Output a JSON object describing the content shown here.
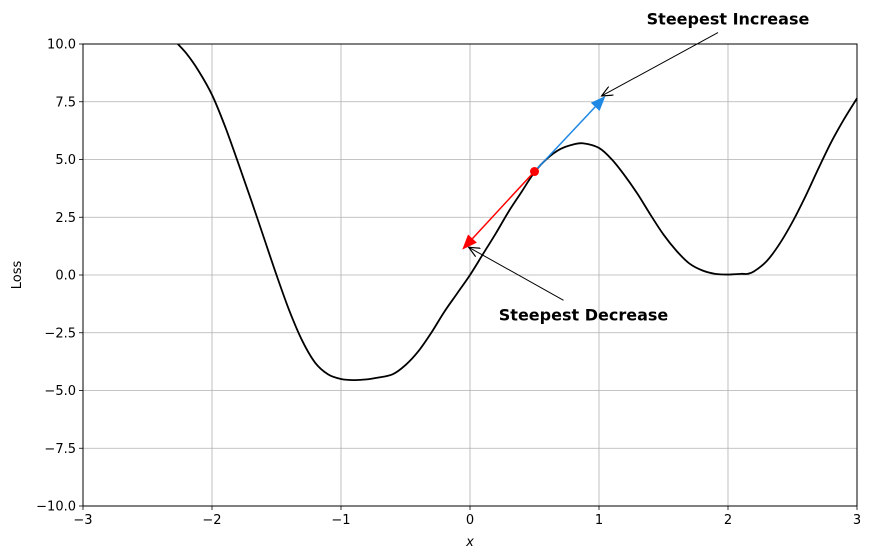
{
  "chart_data": {
    "type": "line",
    "xlabel": "x",
    "ylabel": "Loss",
    "xlim": [
      -3,
      3
    ],
    "ylim": [
      -10,
      10
    ],
    "grid": true,
    "x_ticks": [
      -3,
      -2,
      -1,
      0,
      1,
      2,
      3
    ],
    "x_tick_labels": [
      "−3",
      "−2",
      "−1",
      "0",
      "1",
      "2",
      "3"
    ],
    "y_ticks": [
      -10,
      -7.5,
      -5,
      -2.5,
      0,
      2.5,
      5,
      7.5,
      10
    ],
    "y_tick_labels": [
      "−10.0",
      "−7.5",
      "−5.0",
      "−2.5",
      "0.0",
      "2.5",
      "5.0",
      "7.5",
      "10.0"
    ],
    "series": [
      {
        "color": "#000000",
        "x": [
          -2.3,
          -2.2,
          -2.1,
          -2.0,
          -1.9,
          -1.8,
          -1.7,
          -1.6,
          -1.5,
          -1.4,
          -1.3,
          -1.2,
          -1.1,
          -1.0,
          -0.9,
          -0.8,
          -0.72,
          -0.6,
          -0.5,
          -0.4,
          -0.3,
          -0.2,
          -0.1,
          0.0,
          0.1,
          0.2,
          0.3,
          0.4,
          0.5,
          0.6,
          0.7,
          0.8,
          0.88,
          1.0,
          1.1,
          1.2,
          1.3,
          1.4,
          1.5,
          1.6,
          1.7,
          1.8,
          1.9,
          2.0,
          2.1,
          2.15,
          2.2,
          2.3,
          2.4,
          2.5,
          2.6,
          2.7,
          2.8,
          2.9,
          3.0
        ],
        "y": [
          10.2,
          9.6,
          8.8,
          7.8,
          6.45,
          4.9,
          3.3,
          1.65,
          0.0,
          -1.55,
          -2.85,
          -3.8,
          -4.3,
          -4.5,
          -4.55,
          -4.52,
          -4.45,
          -4.3,
          -3.9,
          -3.3,
          -2.5,
          -1.6,
          -0.8,
          0.0,
          0.9,
          1.8,
          2.75,
          3.6,
          4.45,
          5.05,
          5.45,
          5.65,
          5.7,
          5.5,
          5.0,
          4.3,
          3.5,
          2.6,
          1.75,
          1.05,
          0.5,
          0.2,
          0.05,
          0.02,
          0.05,
          0.05,
          0.15,
          0.6,
          1.35,
          2.3,
          3.4,
          4.6,
          5.75,
          6.75,
          7.65
        ]
      }
    ],
    "point": {
      "x": 0.5,
      "y": 4.48,
      "color": "#ff0000"
    },
    "arrows": [
      {
        "from": [
          0.5,
          4.48
        ],
        "to": [
          1.05,
          7.75
        ],
        "color": "#1e88e5"
      },
      {
        "from": [
          0.5,
          4.48
        ],
        "to": [
          -0.06,
          1.1
        ],
        "color": "#ff0000"
      }
    ],
    "annotations": [
      {
        "text": "Steepest Increase",
        "xy": [
          1.02,
          7.75
        ],
        "text_xy": [
          2.0,
          11.1
        ]
      },
      {
        "text": "Steepest Decrease",
        "xy": [
          -0.01,
          1.2
        ],
        "text_xy": [
          0.88,
          -1.7
        ]
      }
    ]
  }
}
